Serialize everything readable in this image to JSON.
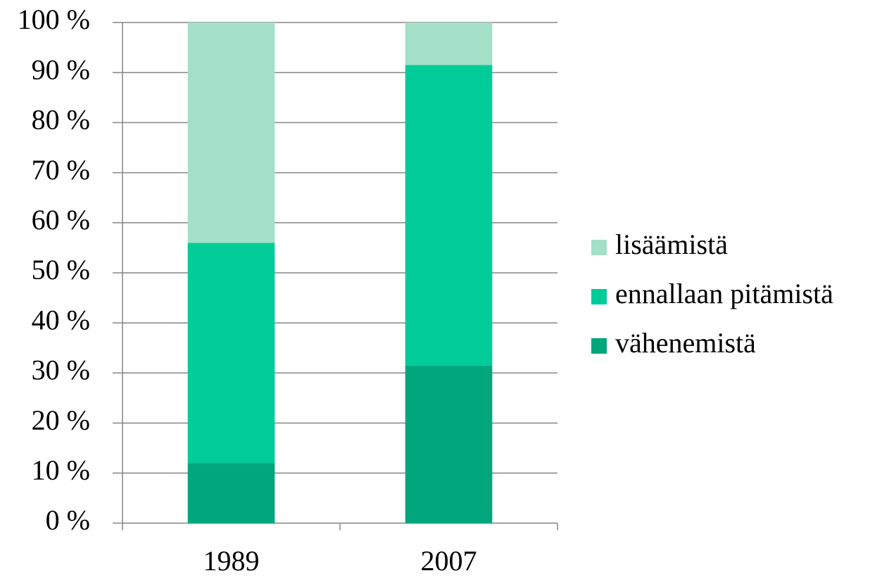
{
  "chart_data": {
    "type": "stacked_bar",
    "categories": [
      "1989",
      "2007"
    ],
    "series": [
      {
        "name": "lisäämistä",
        "color": "#a3e0c7",
        "values": [
          44,
          8.5
        ]
      },
      {
        "name": "ennallaan pitämistä",
        "color": "#00cc99",
        "values": [
          44,
          60
        ]
      },
      {
        "name": "vähenemistä",
        "color": "#00a67c",
        "values": [
          12,
          31.5
        ]
      }
    ],
    "ylim": [
      0,
      100
    ],
    "yticks": [
      {
        "value": 0,
        "label": "0 %"
      },
      {
        "value": 10,
        "label": "10 %"
      },
      {
        "value": 20,
        "label": "20 %"
      },
      {
        "value": 30,
        "label": "30 %"
      },
      {
        "value": 40,
        "label": "40 %"
      },
      {
        "value": 50,
        "label": "50 %"
      },
      {
        "value": 60,
        "label": "60 %"
      },
      {
        "value": 70,
        "label": "70 %"
      },
      {
        "value": 80,
        "label": "80 %"
      },
      {
        "value": 90,
        "label": "90 %"
      },
      {
        "value": 100,
        "label": "100 %"
      }
    ],
    "grid": true,
    "legend": "right"
  }
}
